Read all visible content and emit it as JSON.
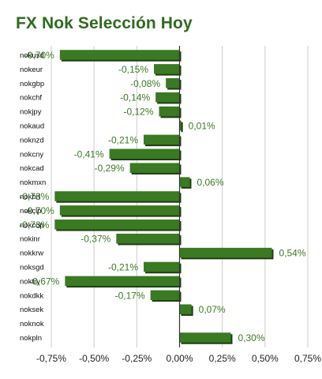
{
  "title": "FX Nok Selección Hoy",
  "colors": {
    "bar": "#3a7a22",
    "bar_shadow": "#1f3d12",
    "label": "#3a7a22",
    "title": "#2f6b1f",
    "grid": "#cccccc",
    "zero": "#333333"
  },
  "chart_data": {
    "type": "bar",
    "orientation": "horizontal",
    "title": "FX Nok Selección Hoy",
    "xlim": [
      -0.75,
      0.75
    ],
    "x_ticks": [
      -0.75,
      -0.5,
      -0.25,
      0.0,
      0.25,
      0.5,
      0.75
    ],
    "x_tick_labels": [
      "-0,75%",
      "-0,50%",
      "-0,25%",
      "0,00%",
      "0,25%",
      "0,50%",
      "0,75%"
    ],
    "grid": true,
    "categories": [
      "nokusd",
      "nokeur",
      "nokgbp",
      "nokchf",
      "nokjpy",
      "nokaud",
      "noknzd",
      "nokcny",
      "nokcad",
      "nokmxn",
      "nokbrl",
      "nokclp",
      "nokcop",
      "nokinr",
      "nokkrw",
      "noksgd",
      "noktry",
      "nokdkk",
      "noksek",
      "noknok",
      "nokpln"
    ],
    "values": [
      -0.7,
      -0.15,
      -0.08,
      -0.14,
      -0.12,
      0.01,
      -0.21,
      -0.41,
      -0.29,
      0.06,
      -0.73,
      -0.7,
      -0.73,
      -0.37,
      0.54,
      -0.21,
      -0.67,
      -0.17,
      0.07,
      0.0,
      0.3
    ],
    "value_labels": [
      "-0,70%",
      "-0,15%",
      "-0,08%",
      "-0,14%",
      "-0,12%",
      "0,01%",
      "-0,21%",
      "-0,41%",
      "-0,29%",
      "0,06%",
      "-0,73%",
      "-0,70%",
      "-0,73%",
      "-0,37%",
      "0,54%",
      "-0,21%",
      "-0,67%",
      "-0,17%",
      "0,07%",
      "",
      "0,30%"
    ]
  }
}
